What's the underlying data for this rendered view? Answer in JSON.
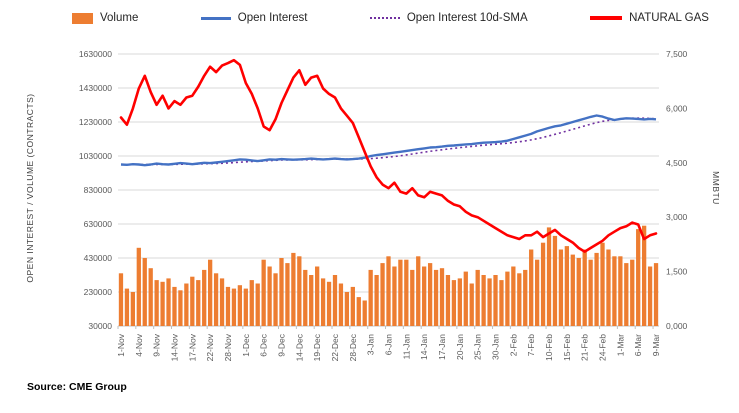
{
  "legend": {
    "items": [
      {
        "label": "Volume",
        "type": "bar",
        "color": "#ED7D31"
      },
      {
        "label": "Open Interest",
        "type": "line",
        "color": "#4472C4"
      },
      {
        "label": "Open Interest 10d-SMA",
        "type": "line-dotted",
        "color": "#7030A0"
      },
      {
        "label": "NATURAL GAS",
        "type": "line-thick",
        "color": "#FF0000"
      }
    ]
  },
  "footer": {
    "source": "Source: CME Group"
  },
  "chart_data": {
    "type": "bar",
    "subtype": "combo-bar-line-dual-axis",
    "title": "",
    "ylabel_left": "OPEN INTEREST / VOLUME (CONTRACTS)",
    "ylabel_right": "MMBTU",
    "y_left_range": [
      30000,
      1630000
    ],
    "y_left_ticks": [
      "30000",
      "230000",
      "430000",
      "630000",
      "830000",
      "1030000",
      "1230000",
      "1430000",
      "1630000"
    ],
    "y_right_range": [
      0,
      7500
    ],
    "y_right_ticks": [
      "0,000",
      "1,500",
      "3,000",
      "4,500",
      "6,000",
      "7,500"
    ],
    "grid": true,
    "legend_position": "top",
    "x_tick_every": 3,
    "x_tick_labels": [
      "1-Nov",
      "4-Nov",
      "9-Nov",
      "14-Nov",
      "17-Nov",
      "22-Nov",
      "28-Nov",
      "1-Dec",
      "6-Dec",
      "9-Dec",
      "14-Dec",
      "19-Dec",
      "22-Dec",
      "28-Dec",
      "3-Jan",
      "6-Jan",
      "11-Jan",
      "14-Jan",
      "17-Jan",
      "20-Jan",
      "25-Jan",
      "30-Jan",
      "2-Feb",
      "7-Feb",
      "10-Feb",
      "15-Feb",
      "21-Feb",
      "24-Feb",
      "1-Mar",
      "6-Mar",
      "9-Mar"
    ],
    "series": [
      {
        "name": "Volume",
        "type": "bar",
        "axis": "left",
        "color": "#ED7D31",
        "values": [
          340000,
          250000,
          230000,
          490000,
          430000,
          370000,
          300000,
          290000,
          310000,
          260000,
          240000,
          280000,
          320000,
          300000,
          360000,
          420000,
          340000,
          310000,
          260000,
          250000,
          270000,
          250000,
          300000,
          280000,
          420000,
          380000,
          340000,
          430000,
          400000,
          460000,
          440000,
          360000,
          330000,
          380000,
          310000,
          290000,
          330000,
          280000,
          230000,
          260000,
          200000,
          180000,
          360000,
          330000,
          400000,
          440000,
          380000,
          420000,
          420000,
          360000,
          440000,
          380000,
          400000,
          360000,
          370000,
          330000,
          300000,
          310000,
          350000,
          280000,
          360000,
          330000,
          310000,
          330000,
          300000,
          350000,
          380000,
          340000,
          360000,
          480000,
          420000,
          520000,
          610000,
          560000,
          480000,
          500000,
          450000,
          430000,
          480000,
          420000,
          460000,
          520000,
          480000,
          440000,
          440000,
          400000,
          420000,
          600000,
          620000,
          380000,
          400000
        ]
      },
      {
        "name": "Open Interest",
        "type": "line",
        "axis": "left",
        "color": "#4472C4",
        "values": [
          980000,
          978000,
          982000,
          980000,
          976000,
          980000,
          985000,
          982000,
          980000,
          984000,
          988000,
          985000,
          982000,
          986000,
          990000,
          988000,
          992000,
          996000,
          1000000,
          1005000,
          1010000,
          1008000,
          1004000,
          1000000,
          1005000,
          1010000,
          1008000,
          1012000,
          1010000,
          1008000,
          1010000,
          1012000,
          1015000,
          1012000,
          1010000,
          1012000,
          1015000,
          1012000,
          1010000,
          1012000,
          1015000,
          1020000,
          1030000,
          1035000,
          1040000,
          1045000,
          1050000,
          1055000,
          1060000,
          1065000,
          1070000,
          1075000,
          1080000,
          1082000,
          1085000,
          1090000,
          1092000,
          1095000,
          1098000,
          1100000,
          1105000,
          1108000,
          1110000,
          1112000,
          1115000,
          1120000,
          1130000,
          1140000,
          1150000,
          1160000,
          1175000,
          1185000,
          1195000,
          1205000,
          1210000,
          1220000,
          1230000,
          1240000,
          1250000,
          1260000,
          1268000,
          1262000,
          1250000,
          1242000,
          1248000,
          1252000,
          1250000,
          1248000,
          1245000,
          1248000,
          1246000
        ]
      },
      {
        "name": "Open Interest 10d-SMA",
        "type": "line-dotted",
        "axis": "left",
        "color": "#7030A0",
        "derived": "10-day trailing moving average of Open Interest",
        "window": 10
      },
      {
        "name": "NATURAL GAS",
        "type": "line",
        "axis": "right",
        "color": "#FF0000",
        "values": [
          5750,
          5550,
          6000,
          6550,
          6900,
          6450,
          6100,
          6350,
          6000,
          6200,
          6100,
          6300,
          6350,
          6600,
          6900,
          7150,
          7000,
          7180,
          7250,
          7330,
          7200,
          6700,
          6400,
          6000,
          5500,
          5400,
          5700,
          6150,
          6500,
          6850,
          7050,
          6650,
          6850,
          6900,
          6550,
          6400,
          6300,
          6000,
          5800,
          5600,
          5200,
          4800,
          4400,
          4100,
          3900,
          3800,
          3950,
          3700,
          3650,
          3800,
          3600,
          3550,
          3700,
          3650,
          3600,
          3450,
          3350,
          3300,
          3150,
          3050,
          3000,
          2900,
          2800,
          2700,
          2600,
          2500,
          2450,
          2400,
          2500,
          2500,
          2600,
          2450,
          2550,
          2650,
          2500,
          2400,
          2300,
          2150,
          2050,
          2150,
          2250,
          2350,
          2500,
          2600,
          2700,
          2750,
          2850,
          2800,
          2400,
          2500,
          2550
        ]
      }
    ]
  }
}
